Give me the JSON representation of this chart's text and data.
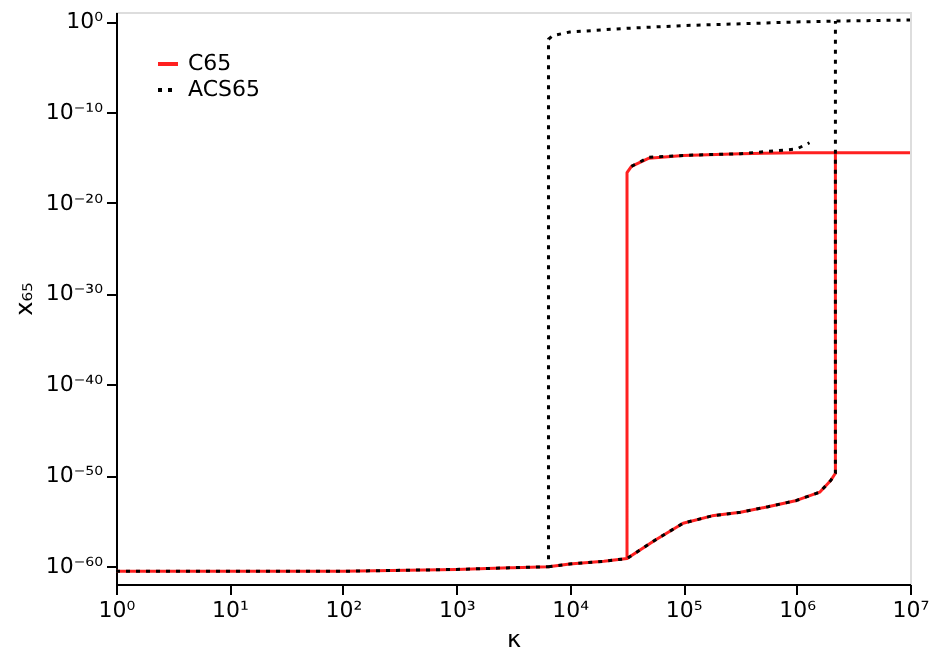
{
  "chart_data": {
    "type": "line",
    "xlabel": "κ",
    "ylabel": "x₆₅",
    "log": "xy",
    "grid": false,
    "legend": "top left",
    "marker": "none",
    "xlim": [
      1,
      10000000
    ],
    "ylim": [
      1e-62,
      10
    ],
    "xticks": [
      {
        "value": 1,
        "label": "10⁰"
      },
      {
        "value": 10,
        "label": "10¹"
      },
      {
        "value": 100,
        "label": "10²"
      },
      {
        "value": 1000,
        "label": "10³"
      },
      {
        "value": 10000,
        "label": "10⁴"
      },
      {
        "value": 100000,
        "label": "10⁵"
      },
      {
        "value": 1000000,
        "label": "10⁶"
      },
      {
        "value": 10000000,
        "label": "10⁷"
      }
    ],
    "yticks": [
      {
        "value": 1,
        "label": "10⁰"
      },
      {
        "value": 1e-10,
        "label": "10⁻¹⁰"
      },
      {
        "value": 1e-20,
        "label": "10⁻²⁰"
      },
      {
        "value": 1e-30,
        "label": "10⁻³⁰"
      },
      {
        "value": 1e-40,
        "label": "10⁻⁴⁰"
      },
      {
        "value": 1e-50,
        "label": "10⁻⁵⁰"
      },
      {
        "value": 1e-60,
        "label": "10⁻⁶⁰"
      }
    ],
    "series": [
      {
        "name": "C65",
        "color": "#ff2020",
        "line_style": "solid",
        "x": [
          1,
          10,
          100,
          1000,
          3200,
          6500,
          10000,
          20000,
          32000,
          56000,
          100000,
          180000,
          320000,
          560000,
          1000000,
          1600000,
          2000000,
          2200000,
          2200000,
          10000000,
          null,
          2200000,
          1000000,
          320000,
          100000,
          50000,
          35000,
          32000,
          32000
        ],
        "values": [
          2.5e-61,
          2.5e-61,
          2.5e-61,
          4e-61,
          6.3e-61,
          8e-61,
          1.6e-60,
          3.2e-60,
          6.3e-60,
          6.3e-58,
          5e-56,
          3.2e-55,
          8e-55,
          3.2e-54,
          1.6e-53,
          1.3e-52,
          2.5e-51,
          1.6e-50,
          3.2e-15,
          3.2e-15,
          null,
          3.2e-15,
          3.2e-15,
          2.5e-15,
          1.6e-15,
          8e-16,
          1e-16,
          2e-17,
          6.3e-60
        ]
      },
      {
        "name": "ACS65",
        "color": "#000000",
        "line_style": "dotted",
        "x": [
          1,
          10,
          100,
          1000,
          3200,
          6500,
          6500,
          7100,
          10000,
          32000,
          100000,
          320000,
          1000000,
          2200000,
          10000000,
          null,
          6500,
          10000,
          20000,
          32000,
          56000,
          100000,
          180000,
          320000,
          560000,
          1000000,
          1600000,
          2000000,
          2200000,
          2200000,
          null,
          35000,
          50000,
          100000,
          320000,
          1000000,
          1300000
        ],
        "values": [
          2.5e-61,
          2.5e-61,
          2.5e-61,
          4e-61,
          6.3e-61,
          8e-61,
          0.01,
          0.025,
          0.063,
          0.16,
          0.32,
          0.5,
          0.8,
          1,
          1.3,
          null,
          8e-61,
          1.6e-60,
          3.2e-60,
          6.3e-60,
          6.3e-58,
          5e-56,
          3.2e-55,
          8e-55,
          3.2e-54,
          1.6e-53,
          1.3e-52,
          2.5e-51,
          1.6e-50,
          1,
          null,
          1e-16,
          1e-15,
          1.6e-15,
          2.5e-15,
          8e-15,
          4e-14
        ]
      }
    ]
  }
}
